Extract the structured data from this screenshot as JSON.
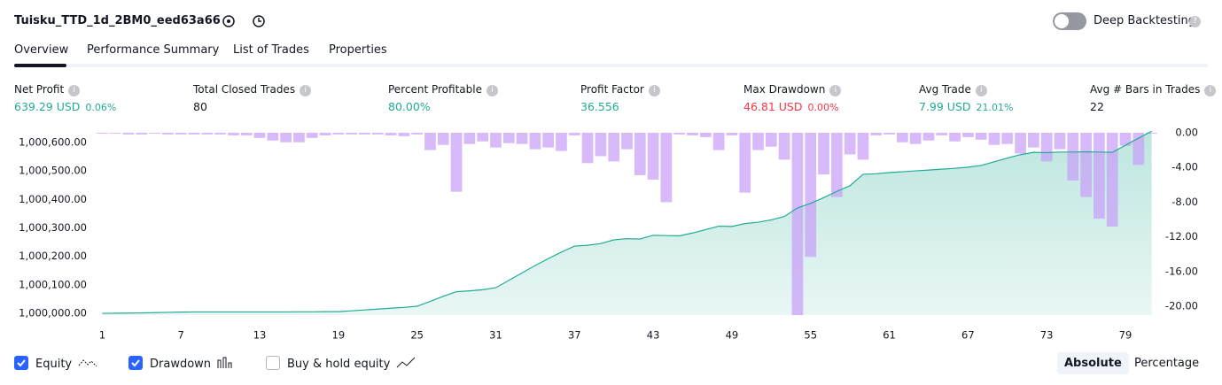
{
  "header": {
    "title": "Tuisku_TTD_1d_2BM0_eed63a66",
    "toggle_label": "Deep Backtesting"
  },
  "tabs": [
    "Overview",
    "Performance Summary",
    "List of Trades",
    "Properties"
  ],
  "metrics": [
    {
      "label": "Net Profit",
      "value": "639.29 USD",
      "extra": "0.06%"
    },
    {
      "label": "Total Closed Trades",
      "value": "80"
    },
    {
      "label": "Percent Profitable",
      "value": "80.00%"
    },
    {
      "label": "Profit Factor",
      "value": "36.556"
    },
    {
      "label": "Max Drawdown",
      "value": "46.81 USD",
      "extra": "0.00%"
    },
    {
      "label": "Avg Trade",
      "value": "7.99 USD",
      "extra": "21.01%"
    },
    {
      "label": "Avg # Bars in Trades",
      "value": "22"
    }
  ],
  "chart_data": {
    "type": "line",
    "x": [
      1,
      2,
      3,
      4,
      5,
      6,
      7,
      8,
      9,
      10,
      11,
      12,
      13,
      14,
      15,
      16,
      17,
      18,
      19,
      20,
      21,
      22,
      23,
      24,
      25,
      26,
      27,
      28,
      29,
      30,
      31,
      32,
      33,
      34,
      35,
      36,
      37,
      38,
      39,
      40,
      41,
      42,
      43,
      44,
      45,
      46,
      47,
      48,
      49,
      50,
      51,
      52,
      53,
      54,
      55,
      56,
      57,
      58,
      59,
      60,
      61,
      62,
      63,
      64,
      65,
      66,
      67,
      68,
      69,
      70,
      71,
      72,
      73,
      74,
      75,
      76,
      77,
      78,
      79,
      80,
      81
    ],
    "xlim": [
      0.5,
      81.5
    ],
    "xticks": [
      1,
      7,
      13,
      19,
      25,
      31,
      37,
      43,
      49,
      55,
      61,
      67,
      73,
      79
    ],
    "ylim": [
      999994,
      1000640
    ],
    "yticks": [
      {
        "value": 1000000,
        "label": "1,000,000.00"
      },
      {
        "value": 1000100,
        "label": "1,000,100.00"
      },
      {
        "value": 1000200,
        "label": "1,000,200.00"
      },
      {
        "value": 1000300,
        "label": "1,000,300.00"
      },
      {
        "value": 1000400,
        "label": "1,000,400.00"
      },
      {
        "value": 1000500,
        "label": "1,000,500.00"
      },
      {
        "value": 1000600,
        "label": "1,000,600.00"
      }
    ],
    "y2lim": [
      -21,
      0.2
    ],
    "y2ticks": [
      {
        "value": 0,
        "label": "0.00"
      },
      {
        "value": -4,
        "label": "-4.00"
      },
      {
        "value": -8,
        "label": "-8.00"
      },
      {
        "value": -12,
        "label": "-12.00"
      },
      {
        "value": -16,
        "label": "-16.00"
      },
      {
        "value": -20,
        "label": "-20.00"
      }
    ],
    "series": [
      {
        "name": "Equity",
        "color": "#22ab94",
        "values": [
          1000000,
          1000000.5,
          1000001,
          1000001.5,
          1000002.5,
          1000003.5,
          1000004.5,
          1000005,
          1000005,
          1000005,
          1000005,
          1000005,
          1000005,
          1000005,
          1000005,
          1000005.5,
          1000005.5,
          1000006,
          1000006,
          1000009,
          1000012,
          1000015,
          1000018,
          1000021,
          1000025,
          1000042,
          1000060,
          1000076,
          1000079,
          1000083,
          1000090,
          1000116,
          1000142,
          1000168,
          1000192,
          1000215,
          1000236,
          1000239,
          1000245,
          1000258,
          1000262,
          1000261,
          1000274,
          1000273,
          1000272,
          1000282,
          1000294,
          1000306,
          1000305,
          1000315,
          1000320,
          1000328,
          1000340,
          1000370,
          1000386,
          1000406,
          1000428,
          1000448,
          1000488,
          1000490,
          1000494,
          1000497,
          1000500,
          1000503,
          1000506,
          1000509,
          1000513,
          1000519,
          1000532,
          1000545,
          1000557,
          1000565,
          1000564,
          1000566,
          1000566,
          1000567,
          1000566,
          1000565,
          1000590,
          1000615,
          1000639.29
        ]
      },
      {
        "name": "Drawdown",
        "color": "#c89cfa",
        "axis": "y2",
        "values": [
          -0.1,
          -0.1,
          -0.2,
          -0.2,
          -0.1,
          -0.2,
          -0.2,
          -0.2,
          -0.2,
          -0.2,
          -0.3,
          -0.3,
          -0.6,
          -0.9,
          -1.1,
          -1.1,
          -0.6,
          -0.3,
          -0.2,
          -0.2,
          -0.2,
          -0.2,
          -0.3,
          -0.4,
          -0.2,
          -2.0,
          -1.4,
          -6.8,
          -1.3,
          -1.0,
          -1.7,
          -1.2,
          -1.3,
          -1.9,
          -1.7,
          -2.1,
          -0.3,
          -3.5,
          -2.7,
          -3.3,
          -1.9,
          -4.9,
          -5.4,
          -8.0,
          -0.2,
          -0.3,
          -0.5,
          -2.0,
          -0.3,
          -6.9,
          -2.0,
          -1.6,
          -3.1,
          -21.0,
          -14.3,
          -4.8,
          -7.4,
          -2.5,
          -3.1,
          -0.3,
          -0.2,
          -1.1,
          -1.3,
          -0.9,
          -0.3,
          -1.0,
          -0.5,
          -0.8,
          -1.4,
          -1.3,
          -2.4,
          -1.7,
          -3.3,
          -1.9,
          -5.5,
          -7.4,
          -9.9,
          -10.8,
          -1.5,
          -3.7,
          0
        ]
      }
    ],
    "legend": [
      {
        "name": "Equity",
        "checked": true
      },
      {
        "name": "Drawdown",
        "checked": true
      },
      {
        "name": "Buy & hold equity",
        "checked": false
      }
    ]
  },
  "buttons": [
    "Absolute",
    "Percentage"
  ]
}
